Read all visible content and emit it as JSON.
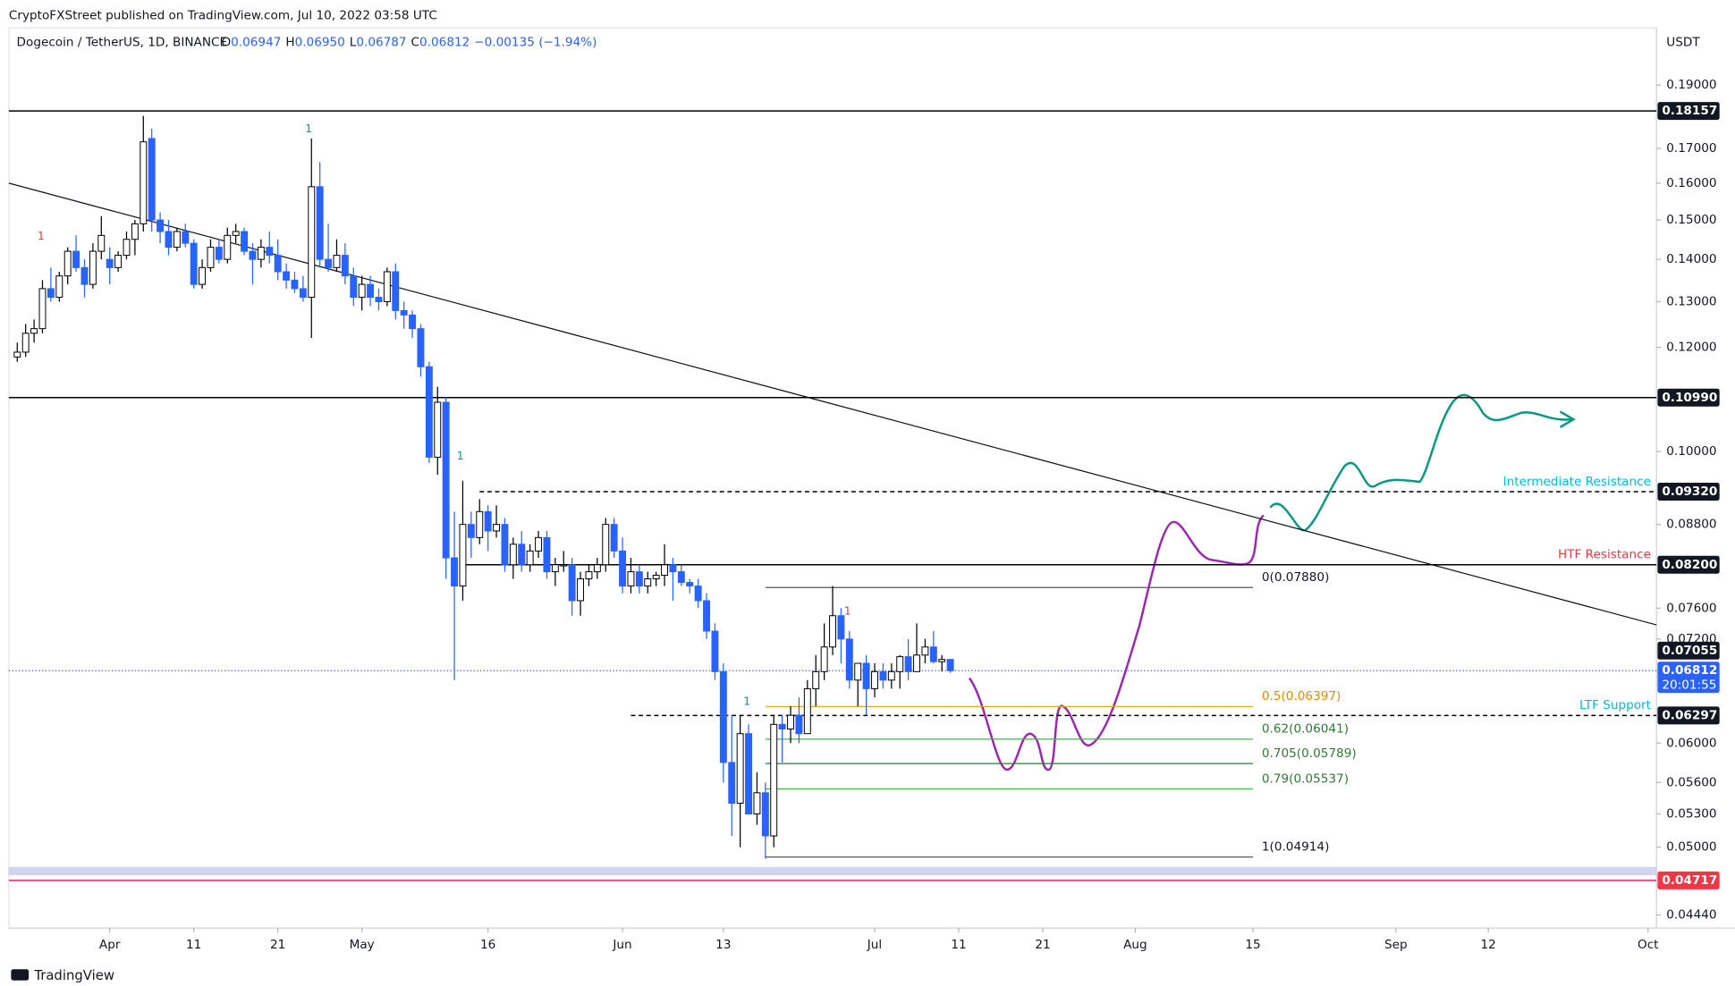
{
  "header": {
    "publisher": "CryptoFXStreet published on TradingView.com, Jul 10, 2022 03:58 UTC",
    "footer": "TradingView"
  },
  "chart_data": {
    "type": "candlestick",
    "title": "Dogecoin / TetherUS, 1D, BINANCE",
    "legend": [
      {
        "label": "O",
        "value": "0.06947"
      },
      {
        "label": "H",
        "value": "0.06950"
      },
      {
        "label": "L",
        "value": "0.06787"
      },
      {
        "label": "C",
        "value": "0.06812"
      }
    ],
    "change": "−0.00135 (−1.94%)",
    "y_unit": "USDT",
    "log_scale": true,
    "up_color": "#ffffff",
    "up_border": "#000000",
    "down_color": "#2962ff",
    "x": [
      "Mar 21",
      "Mar 22",
      "Mar 23",
      "Mar 24",
      "Mar 25",
      "Mar 26",
      "Mar 27",
      "Mar 28",
      "Mar 29",
      "Mar 30",
      "Mar 31",
      "Apr 1",
      "Apr 2",
      "Apr 3",
      "Apr 4",
      "Apr 5",
      "Apr 6",
      "Apr 7",
      "Apr 8",
      "Apr 9",
      "Apr 10",
      "Apr 11",
      "Apr 12",
      "Apr 13",
      "Apr 14",
      "Apr 15",
      "Apr 16",
      "Apr 17",
      "Apr 18",
      "Apr 19",
      "Apr 20",
      "Apr 21",
      "Apr 22",
      "Apr 23",
      "Apr 24",
      "Apr 25",
      "Apr 26",
      "Apr 27",
      "Apr 28",
      "Apr 29",
      "Apr 30",
      "May 1",
      "May 2",
      "May 3",
      "May 4",
      "May 5",
      "May 6",
      "May 7",
      "May 8",
      "May 9",
      "May 10",
      "May 11",
      "May 12",
      "May 13",
      "May 14",
      "May 15",
      "May 16",
      "May 17",
      "May 18",
      "May 19",
      "May 20",
      "May 21",
      "May 22",
      "May 23",
      "May 24",
      "May 25",
      "May 26",
      "May 27",
      "May 28",
      "May 29",
      "May 30",
      "May 31",
      "Jun 1",
      "Jun 2",
      "Jun 3",
      "Jun 4",
      "Jun 5",
      "Jun 6",
      "Jun 7",
      "Jun 8",
      "Jun 9",
      "Jun 10",
      "Jun 11",
      "Jun 12",
      "Jun 13",
      "Jun 14",
      "Jun 15",
      "Jun 16",
      "Jun 17",
      "Jun 18",
      "Jun 19",
      "Jun 20",
      "Jun 21",
      "Jun 22",
      "Jun 23",
      "Jun 24",
      "Jun 25",
      "Jun 26",
      "Jun 27",
      "Jun 28",
      "Jun 29",
      "Jun 30",
      "Jul 1",
      "Jul 2",
      "Jul 3",
      "Jul 4",
      "Jul 5",
      "Jul 6",
      "Jul 7",
      "Jul 8",
      "Jul 9",
      "Jul 10"
    ],
    "ohlc": [
      [
        0.118,
        0.121,
        0.117,
        0.119
      ],
      [
        0.119,
        0.125,
        0.118,
        0.123
      ],
      [
        0.123,
        0.126,
        0.121,
        0.124
      ],
      [
        0.124,
        0.135,
        0.123,
        0.133
      ],
      [
        0.133,
        0.138,
        0.13,
        0.131
      ],
      [
        0.131,
        0.137,
        0.13,
        0.136
      ],
      [
        0.136,
        0.143,
        0.134,
        0.142
      ],
      [
        0.142,
        0.146,
        0.137,
        0.138
      ],
      [
        0.138,
        0.14,
        0.131,
        0.134
      ],
      [
        0.134,
        0.144,
        0.133,
        0.142
      ],
      [
        0.142,
        0.151,
        0.14,
        0.146
      ],
      [
        0.14,
        0.143,
        0.134,
        0.138
      ],
      [
        0.138,
        0.142,
        0.137,
        0.141
      ],
      [
        0.141,
        0.147,
        0.14,
        0.145
      ],
      [
        0.145,
        0.15,
        0.141,
        0.149
      ],
      [
        0.149,
        0.18,
        0.147,
        0.172
      ],
      [
        0.173,
        0.176,
        0.147,
        0.15
      ],
      [
        0.15,
        0.152,
        0.144,
        0.147
      ],
      [
        0.147,
        0.15,
        0.141,
        0.143
      ],
      [
        0.143,
        0.148,
        0.142,
        0.147
      ],
      [
        0.147,
        0.149,
        0.143,
        0.144
      ],
      [
        0.144,
        0.145,
        0.133,
        0.134
      ],
      [
        0.134,
        0.14,
        0.133,
        0.138
      ],
      [
        0.138,
        0.145,
        0.137,
        0.143
      ],
      [
        0.143,
        0.145,
        0.139,
        0.14
      ],
      [
        0.14,
        0.148,
        0.139,
        0.146
      ],
      [
        0.146,
        0.149,
        0.144,
        0.147
      ],
      [
        0.147,
        0.148,
        0.141,
        0.142
      ],
      [
        0.142,
        0.144,
        0.134,
        0.14
      ],
      [
        0.14,
        0.145,
        0.138,
        0.143
      ],
      [
        0.143,
        0.147,
        0.139,
        0.141
      ],
      [
        0.141,
        0.145,
        0.135,
        0.137
      ],
      [
        0.137,
        0.139,
        0.133,
        0.135
      ],
      [
        0.135,
        0.137,
        0.132,
        0.133
      ],
      [
        0.133,
        0.136,
        0.13,
        0.131
      ],
      [
        0.131,
        0.173,
        0.122,
        0.159
      ],
      [
        0.159,
        0.166,
        0.138,
        0.14
      ],
      [
        0.14,
        0.149,
        0.137,
        0.138
      ],
      [
        0.138,
        0.145,
        0.137,
        0.141
      ],
      [
        0.141,
        0.144,
        0.134,
        0.136
      ],
      [
        0.136,
        0.138,
        0.129,
        0.131
      ],
      [
        0.131,
        0.136,
        0.128,
        0.134
      ],
      [
        0.134,
        0.136,
        0.129,
        0.131
      ],
      [
        0.131,
        0.133,
        0.128,
        0.13
      ],
      [
        0.13,
        0.138,
        0.129,
        0.137
      ],
      [
        0.137,
        0.139,
        0.126,
        0.128
      ],
      [
        0.128,
        0.13,
        0.124,
        0.127
      ],
      [
        0.127,
        0.128,
        0.122,
        0.124
      ],
      [
        0.124,
        0.125,
        0.114,
        0.116
      ],
      [
        0.116,
        0.117,
        0.098,
        0.099
      ],
      [
        0.099,
        0.112,
        0.096,
        0.109
      ],
      [
        0.109,
        0.11,
        0.08,
        0.083
      ],
      [
        0.083,
        0.09,
        0.067,
        0.079
      ],
      [
        0.079,
        0.095,
        0.077,
        0.088
      ],
      [
        0.088,
        0.09,
        0.083,
        0.086
      ],
      [
        0.086,
        0.092,
        0.085,
        0.09
      ],
      [
        0.09,
        0.091,
        0.084,
        0.087
      ],
      [
        0.087,
        0.091,
        0.086,
        0.088
      ],
      [
        0.088,
        0.089,
        0.081,
        0.082
      ],
      [
        0.082,
        0.086,
        0.08,
        0.085
      ],
      [
        0.085,
        0.087,
        0.081,
        0.082
      ],
      [
        0.082,
        0.085,
        0.081,
        0.084
      ],
      [
        0.084,
        0.087,
        0.083,
        0.086
      ],
      [
        0.086,
        0.087,
        0.08,
        0.081
      ],
      [
        0.081,
        0.083,
        0.079,
        0.082
      ],
      [
        0.082,
        0.084,
        0.081,
        0.082
      ],
      [
        0.082,
        0.083,
        0.075,
        0.077
      ],
      [
        0.077,
        0.081,
        0.075,
        0.08
      ],
      [
        0.08,
        0.082,
        0.079,
        0.081
      ],
      [
        0.081,
        0.083,
        0.08,
        0.082
      ],
      [
        0.082,
        0.089,
        0.081,
        0.088
      ],
      [
        0.088,
        0.089,
        0.083,
        0.084
      ],
      [
        0.084,
        0.086,
        0.078,
        0.079
      ],
      [
        0.079,
        0.083,
        0.078,
        0.081
      ],
      [
        0.081,
        0.082,
        0.078,
        0.079
      ],
      [
        0.079,
        0.081,
        0.078,
        0.08
      ],
      [
        0.08,
        0.081,
        0.079,
        0.0805
      ],
      [
        0.0805,
        0.085,
        0.079,
        0.082
      ],
      [
        0.082,
        0.083,
        0.077,
        0.081
      ],
      [
        0.081,
        0.082,
        0.079,
        0.0795
      ],
      [
        0.0795,
        0.08,
        0.078,
        0.079
      ],
      [
        0.079,
        0.08,
        0.076,
        0.077
      ],
      [
        0.077,
        0.078,
        0.072,
        0.073
      ],
      [
        0.073,
        0.074,
        0.067,
        0.068
      ],
      [
        0.068,
        0.069,
        0.056,
        0.058
      ],
      [
        0.058,
        0.063,
        0.051,
        0.054
      ],
      [
        0.054,
        0.063,
        0.05,
        0.061
      ],
      [
        0.061,
        0.062,
        0.053,
        0.053
      ],
      [
        0.053,
        0.057,
        0.052,
        0.055
      ],
      [
        0.055,
        0.056,
        0.049,
        0.051
      ],
      [
        0.051,
        0.063,
        0.05,
        0.062
      ],
      [
        0.062,
        0.063,
        0.058,
        0.0615
      ],
      [
        0.0615,
        0.064,
        0.06,
        0.063
      ],
      [
        0.063,
        0.065,
        0.06,
        0.061
      ],
      [
        0.061,
        0.067,
        0.061,
        0.066
      ],
      [
        0.066,
        0.07,
        0.064,
        0.068
      ],
      [
        0.068,
        0.074,
        0.067,
        0.071
      ],
      [
        0.071,
        0.079,
        0.07,
        0.075
      ],
      [
        0.075,
        0.076,
        0.069,
        0.072
      ],
      [
        0.072,
        0.073,
        0.066,
        0.067
      ],
      [
        0.067,
        0.069,
        0.064,
        0.069
      ],
      [
        0.069,
        0.07,
        0.063,
        0.066
      ],
      [
        0.066,
        0.069,
        0.065,
        0.068
      ],
      [
        0.068,
        0.069,
        0.066,
        0.067
      ],
      [
        0.067,
        0.069,
        0.066,
        0.068
      ],
      [
        0.068,
        0.07,
        0.066,
        0.0698
      ],
      [
        0.0698,
        0.072,
        0.067,
        0.068
      ],
      [
        0.068,
        0.074,
        0.068,
        0.07
      ],
      [
        0.07,
        0.072,
        0.069,
        0.071
      ],
      [
        0.071,
        0.073,
        0.069,
        0.0692
      ],
      [
        0.0692,
        0.07,
        0.068,
        0.06947
      ],
      [
        0.06947,
        0.0695,
        0.06787,
        0.06812
      ]
    ],
    "xlim": [
      "Mar 20",
      "Oct 2"
    ],
    "xticks": [
      {
        "value": "Apr 1",
        "label": "Apr"
      },
      {
        "value": "Apr 11",
        "label": "11"
      },
      {
        "value": "Apr 21",
        "label": "21"
      },
      {
        "value": "May 1",
        "label": "May"
      },
      {
        "value": "May 16",
        "label": "16"
      },
      {
        "value": "Jun 1",
        "label": "Jun"
      },
      {
        "value": "Jun 13",
        "label": "13"
      },
      {
        "value": "Jul 1",
        "label": "Jul"
      },
      {
        "value": "Jul 11",
        "label": "11"
      },
      {
        "value": "Jul 21",
        "label": "21"
      },
      {
        "value": "Aug 1",
        "label": "Aug"
      },
      {
        "value": "Aug 15",
        "label": "15"
      },
      {
        "value": "Sep 1",
        "label": "Sep"
      },
      {
        "value": "Sep 12",
        "label": "12"
      },
      {
        "value": "Oct 1",
        "label": "Oct"
      }
    ],
    "ylim": [
      0.0434,
      0.21
    ],
    "yticks": [
      {
        "value": 0.19,
        "label": "0.19000"
      },
      {
        "value": 0.17,
        "label": "0.17000"
      },
      {
        "value": 0.16,
        "label": "0.16000"
      },
      {
        "value": 0.15,
        "label": "0.15000"
      },
      {
        "value": 0.14,
        "label": "0.14000"
      },
      {
        "value": 0.13,
        "label": "0.13000"
      },
      {
        "value": 0.12,
        "label": "0.12000"
      },
      {
        "value": 0.1,
        "label": "0.10000"
      },
      {
        "value": 0.088,
        "label": "0.08800"
      },
      {
        "value": 0.076,
        "label": "0.07600"
      },
      {
        "value": 0.072,
        "label": "0.07200"
      },
      {
        "value": 0.06,
        "label": "0.06000"
      },
      {
        "value": 0.056,
        "label": "0.05600"
      },
      {
        "value": 0.053,
        "label": "0.05300"
      },
      {
        "value": 0.05,
        "label": "0.05000"
      },
      {
        "value": 0.0444,
        "label": "0.04440"
      }
    ],
    "levels": [
      {
        "value": 0.18157,
        "label": "0.18157",
        "style": "solid",
        "color": "#000000",
        "badge": "#131722"
      },
      {
        "value": 0.1099,
        "label": "0.10990",
        "style": "solid",
        "color": "#000000",
        "badge": "#131722"
      },
      {
        "value": 0.0932,
        "label": "0.09320",
        "style": "dashed",
        "color": "#000000",
        "badge": "#131722",
        "start": "May 15",
        "text": "Intermediate Resistance",
        "text_color": "#00bcd4"
      },
      {
        "value": 0.082,
        "label": "0.08200",
        "style": "solid",
        "color": "#000000",
        "badge": "#131722",
        "start": "May 13",
        "text": "HTF Resistance",
        "text_color": "#f23645"
      },
      {
        "value": 0.06297,
        "label": "0.06297",
        "style": "dashed",
        "color": "#000000",
        "badge": "#131722",
        "start": "Jun 2",
        "text": "LTF Support",
        "text_color": "#00bcd4"
      },
      {
        "value": 0.04717,
        "label": "0.04717",
        "style": "solid",
        "color": "#e91e63",
        "badge": "#f23645"
      }
    ],
    "badges": [
      {
        "value": 0.07055,
        "label": "0.07055",
        "color": "#131722"
      }
    ],
    "current_price": {
      "value": 0.06812,
      "label": "0.06812",
      "countdown": "20:01:55",
      "color": "#2962ff"
    },
    "support_zone": [
      0.0476,
      0.0483
    ],
    "trendline": {
      "x": [
        "Mar 20",
        "Oct 2"
      ],
      "y": [
        0.16,
        0.0738
      ]
    },
    "fib": {
      "start": "Jun 18",
      "end": "Aug 15",
      "levels": [
        {
          "value": 0.0788,
          "label": "0(0.07880)",
          "color": "#555555"
        },
        {
          "value": 0.06397,
          "label": "0.5(0.06397)",
          "color": "#f5a623"
        },
        {
          "value": 0.06041,
          "label": "0.62(0.06041)",
          "color": "#4caf50"
        },
        {
          "value": 0.05789,
          "label": "0.705(0.05789)",
          "color": "#2e7d32"
        },
        {
          "value": 0.05537,
          "label": "0.79(0.05537)",
          "color": "#4caf50"
        },
        {
          "value": 0.04914,
          "label": "1(0.04914)",
          "color": "#555555"
        }
      ]
    },
    "markers": [
      "1",
      "1",
      "1",
      "1",
      "1"
    ]
  }
}
